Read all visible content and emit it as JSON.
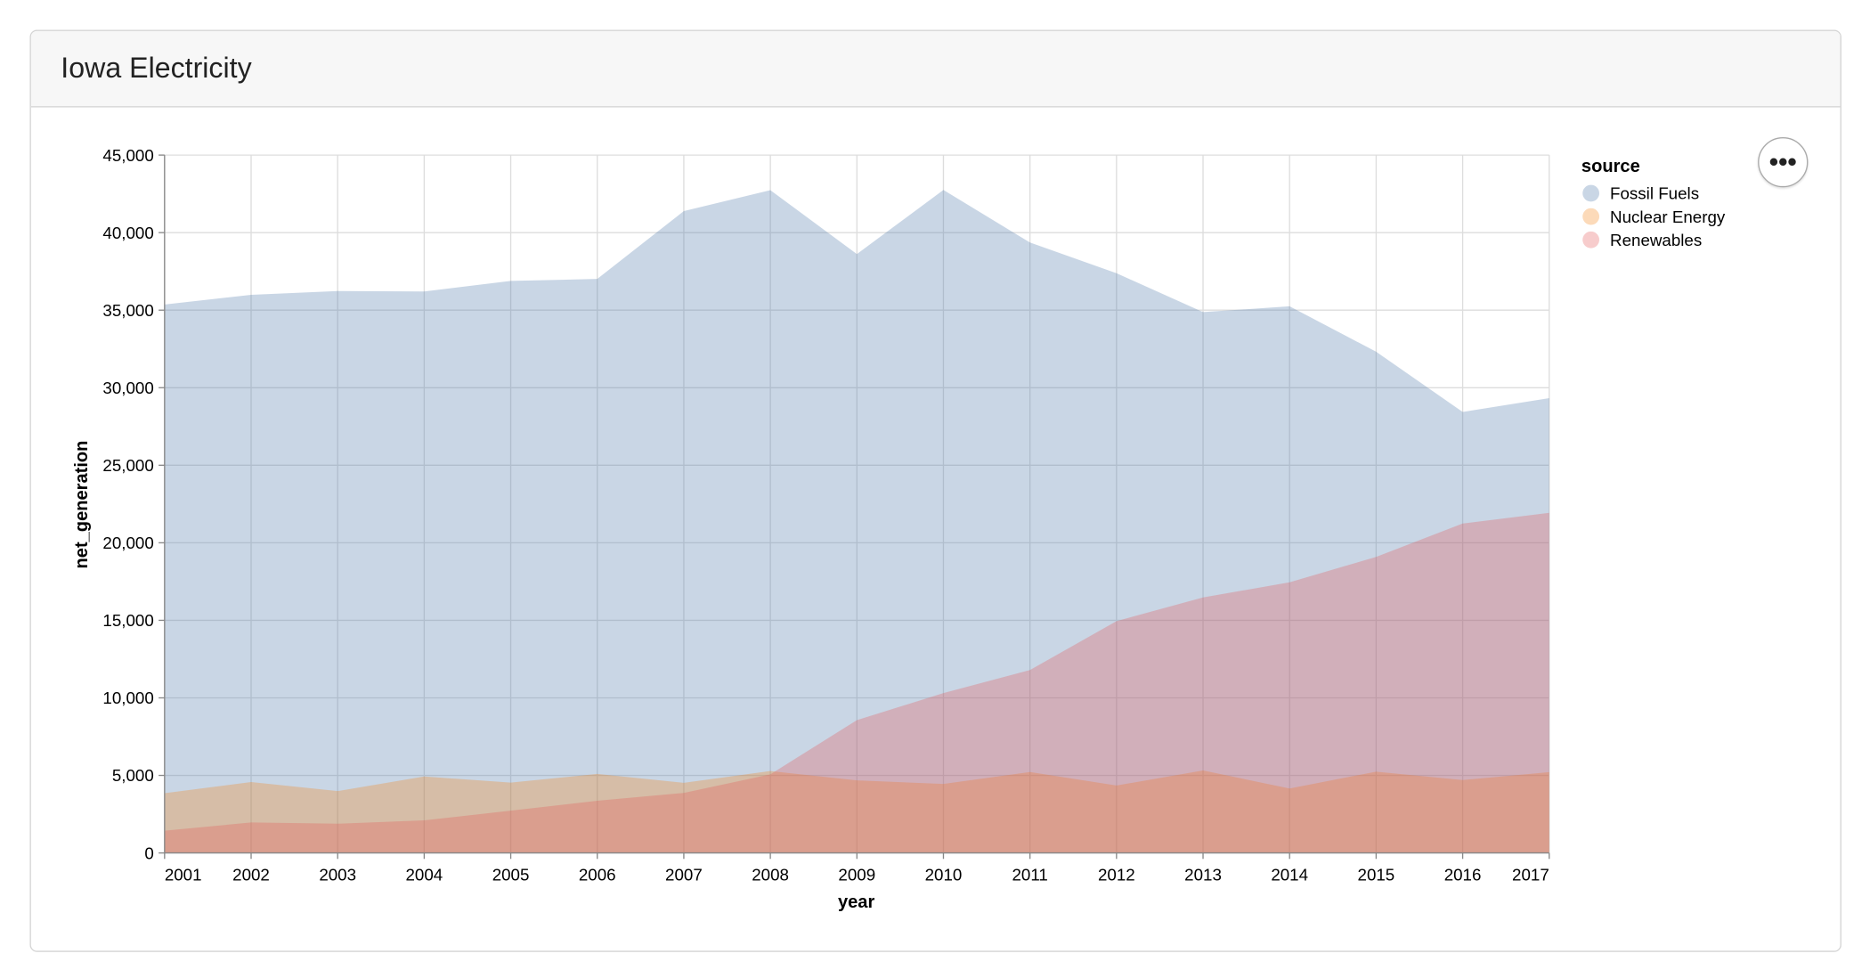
{
  "card": {
    "title": "Iowa Electricity"
  },
  "menu_button": {
    "icon": "ellipsis-icon",
    "glyph": "•••"
  },
  "chart_data": {
    "type": "area",
    "stacked": false,
    "xlabel": "year",
    "ylabel": "net_generation",
    "ylim": [
      0,
      45000
    ],
    "yticks": [
      0,
      5000,
      10000,
      15000,
      20000,
      25000,
      30000,
      35000,
      40000,
      45000
    ],
    "ytick_labels": [
      "0",
      "5,000",
      "10,000",
      "15,000",
      "20,000",
      "25,000",
      "30,000",
      "35,000",
      "40,000",
      "45,000"
    ],
    "x": [
      2001,
      2002,
      2003,
      2004,
      2005,
      2006,
      2007,
      2008,
      2009,
      2010,
      2011,
      2012,
      2013,
      2014,
      2015,
      2016,
      2017
    ],
    "xtick_labels": [
      "2001",
      "2002",
      "2003",
      "2004",
      "2005",
      "2006",
      "2007",
      "2008",
      "2009",
      "2010",
      "2011",
      "2012",
      "2013",
      "2014",
      "2015",
      "2016",
      "2017"
    ],
    "grid": true,
    "opacity": 0.3,
    "legend": {
      "title": "source",
      "placement": "right"
    },
    "series": [
      {
        "name": "Fossil Fuels",
        "color": "#4c78a8",
        "values": [
          35361,
          35991,
          36234,
          36205,
          36883,
          37014,
          41389,
          42734,
          38620,
          42750,
          39361,
          37379,
          34873,
          35250,
          32319,
          28437,
          29329
        ]
      },
      {
        "name": "Nuclear Energy",
        "color": "#f58518",
        "values": [
          3853,
          4574,
          3988,
          4929,
          4538,
          5095,
          4519,
          5282,
          4679,
          4451,
          5215,
          4347,
          5321,
          4152,
          5243,
          4703,
          5214
        ]
      },
      {
        "name": "Renewables",
        "color": "#e45756",
        "values": [
          1437,
          1963,
          1885,
          2102,
          2724,
          3364,
          3870,
          5070,
          8560,
          10308,
          11795,
          14949,
          16476,
          17452,
          19091,
          21241,
          21933
        ]
      }
    ]
  }
}
